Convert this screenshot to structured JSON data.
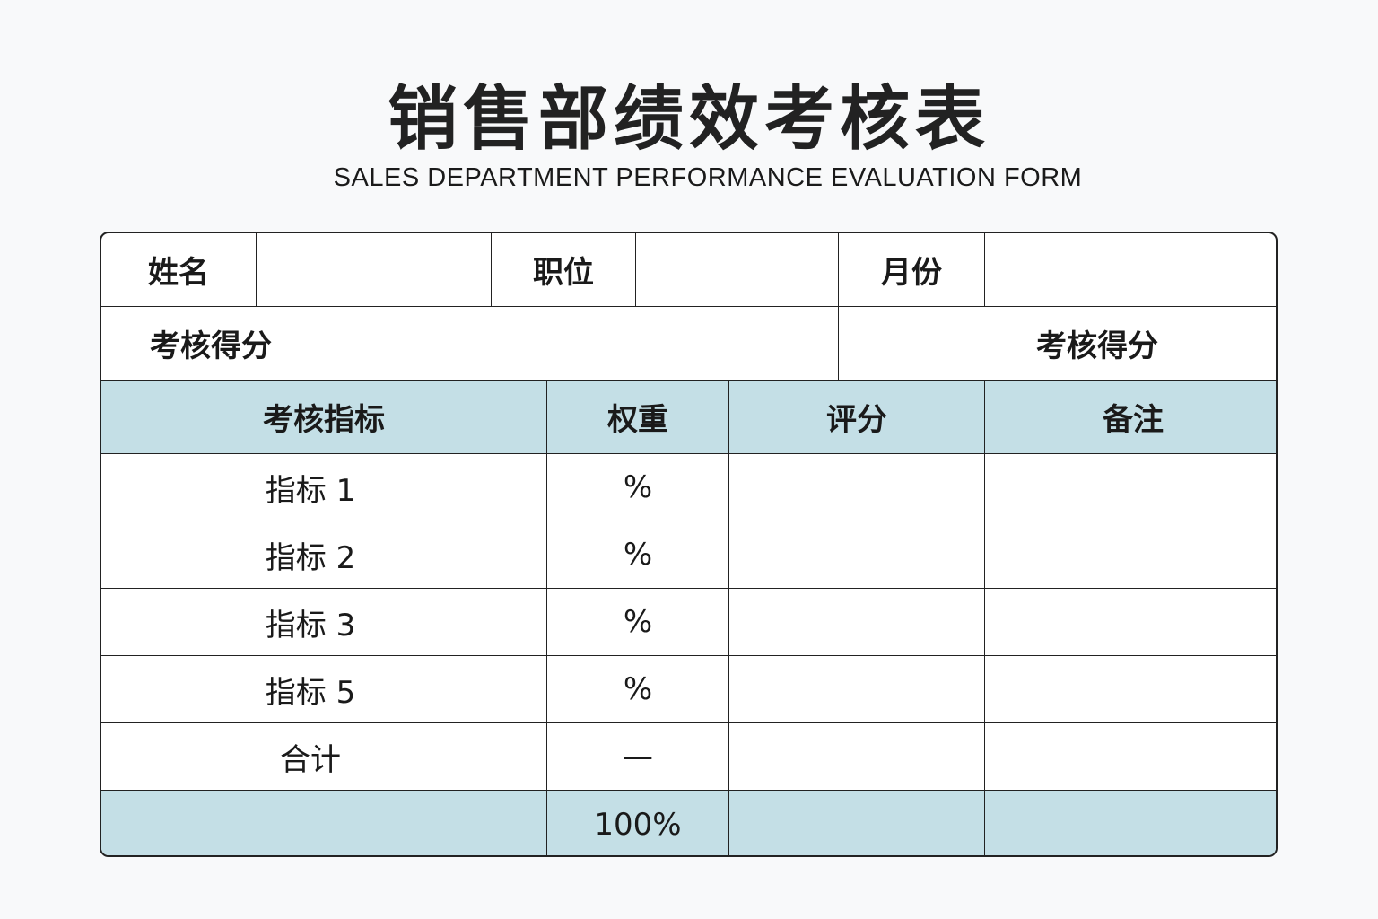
{
  "title": "销售部绩效考核表",
  "subtitle": "SALES DEPARTMENT PERFORMANCE EVALUATION FORM",
  "colors": {
    "header_fill": "#c4dfe6",
    "border": "#222222"
  },
  "info": {
    "name_label": "姓名",
    "name_value": "",
    "position_label": "职位",
    "position_value": "",
    "month_label": "月份",
    "month_value": "",
    "score_label_left": "考核得分",
    "score_label_right": "考核得分"
  },
  "table": {
    "headers": [
      "考核指标",
      "权重",
      "评分",
      "备注"
    ],
    "rows": [
      {
        "indicator": "指标 1",
        "weight": "%",
        "score": "",
        "note": ""
      },
      {
        "indicator": "指标 2",
        "weight": "%",
        "score": "",
        "note": ""
      },
      {
        "indicator": "指标 3",
        "weight": "%",
        "score": "",
        "note": ""
      },
      {
        "indicator": "指标 5",
        "weight": "%",
        "score": "",
        "note": ""
      },
      {
        "indicator": "合计",
        "weight": "—",
        "score": "",
        "note": ""
      },
      {
        "indicator": "",
        "weight": "100%",
        "score": "",
        "note": ""
      }
    ]
  }
}
